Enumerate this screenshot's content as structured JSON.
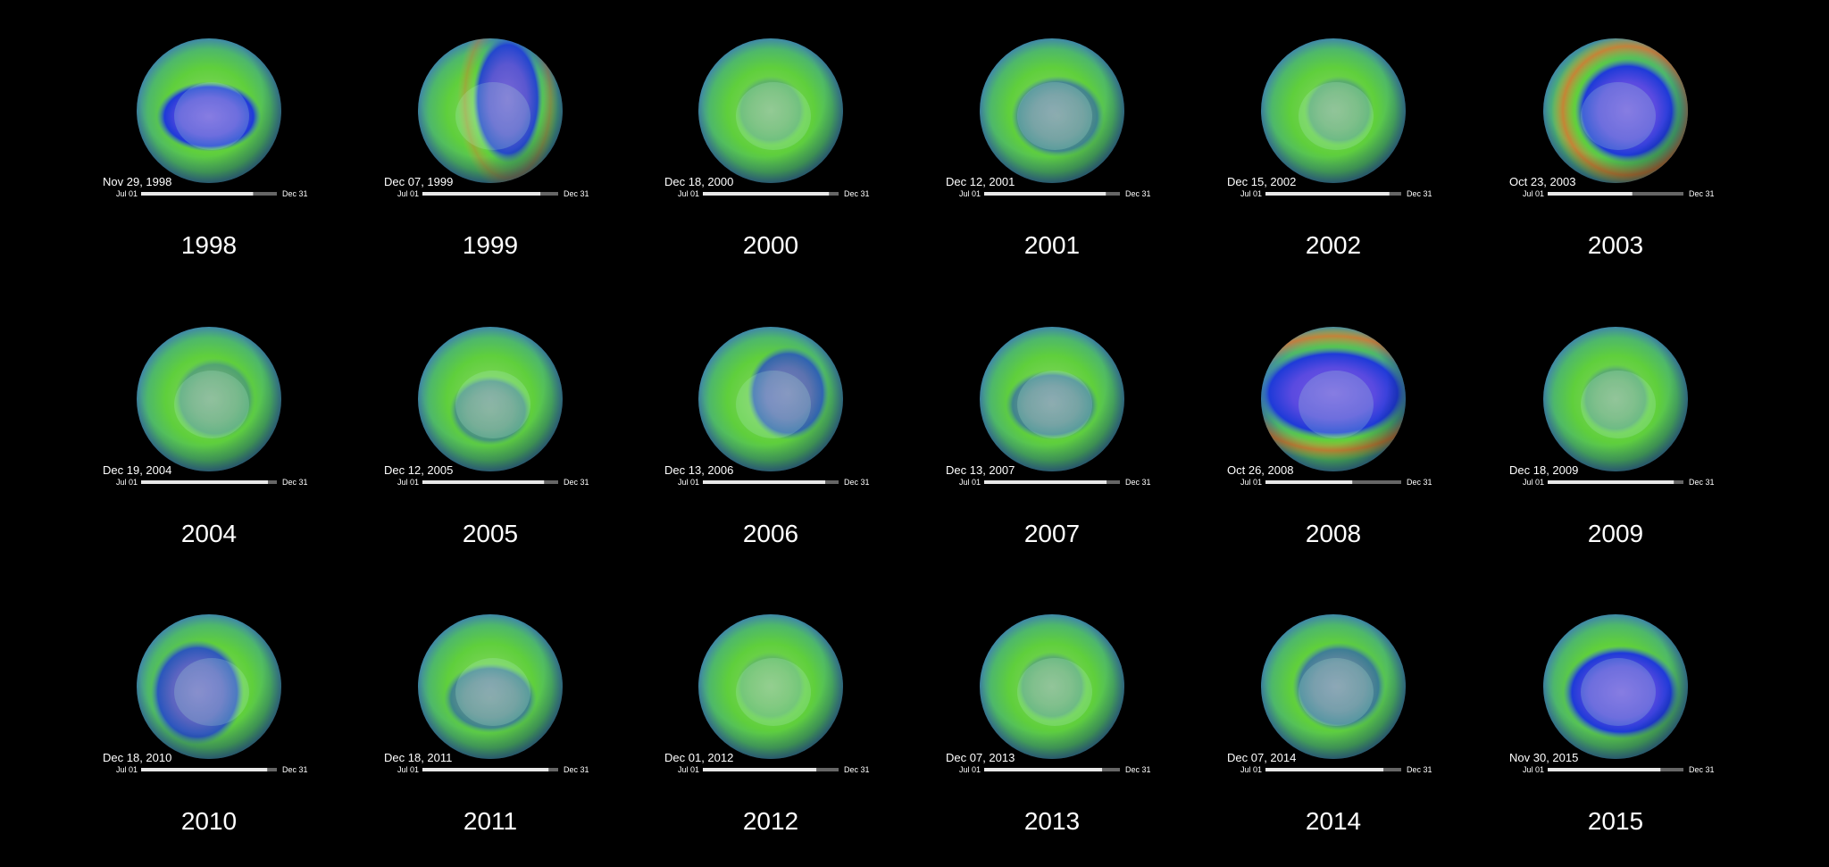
{
  "panels": [
    {
      "date": "Nov 29, 1998",
      "start": "Jul 01",
      "end": "Dec 31",
      "year": "1998"
    },
    {
      "date": "Dec 07, 1999",
      "start": "Jul 01",
      "end": "Dec 31",
      "year": "1999"
    },
    {
      "date": "Dec 18, 2000",
      "start": "Jul 01",
      "end": "Dec 31",
      "year": "2000"
    },
    {
      "date": "Dec 12, 2001",
      "start": "Jul 01",
      "end": "Dec 31",
      "year": "2001"
    },
    {
      "date": "Dec 15, 2002",
      "start": "Jul 01",
      "end": "Dec 31",
      "year": "2002"
    },
    {
      "date": "Oct 23, 2003",
      "start": "Jul 01",
      "end": "Dec 31",
      "year": "2003"
    },
    {
      "date": "Dec 19, 2004",
      "start": "Jul 01",
      "end": "Dec 31",
      "year": "2004"
    },
    {
      "date": "Dec 12, 2005",
      "start": "Jul 01",
      "end": "Dec 31",
      "year": "2005"
    },
    {
      "date": "Dec 13, 2006",
      "start": "Jul 01",
      "end": "Dec 31",
      "year": "2006"
    },
    {
      "date": "Dec 13, 2007",
      "start": "Jul 01",
      "end": "Dec 31",
      "year": "2007"
    },
    {
      "date": "Oct 26, 2008",
      "start": "Jul 01",
      "end": "Dec 31",
      "year": "2008"
    },
    {
      "date": "Dec 18, 2009",
      "start": "Jul 01",
      "end": "Dec 31",
      "year": "2009"
    },
    {
      "date": "Dec 18, 2010",
      "start": "Jul 01",
      "end": "Dec 31",
      "year": "2010"
    },
    {
      "date": "Dec 18, 2011",
      "start": "Jul 01",
      "end": "Dec 31",
      "year": "2011"
    },
    {
      "date": "Dec 01, 2012",
      "start": "Jul 01",
      "end": "Dec 31",
      "year": "2012"
    },
    {
      "date": "Dec 07, 2013",
      "start": "Jul 01",
      "end": "Dec 31",
      "year": "2013"
    },
    {
      "date": "Dec 07, 2014",
      "start": "Jul 01",
      "end": "Dec 31",
      "year": "2014"
    },
    {
      "date": "Nov 30, 2015",
      "start": "Jul 01",
      "end": "Dec 31",
      "year": "2015"
    }
  ]
}
